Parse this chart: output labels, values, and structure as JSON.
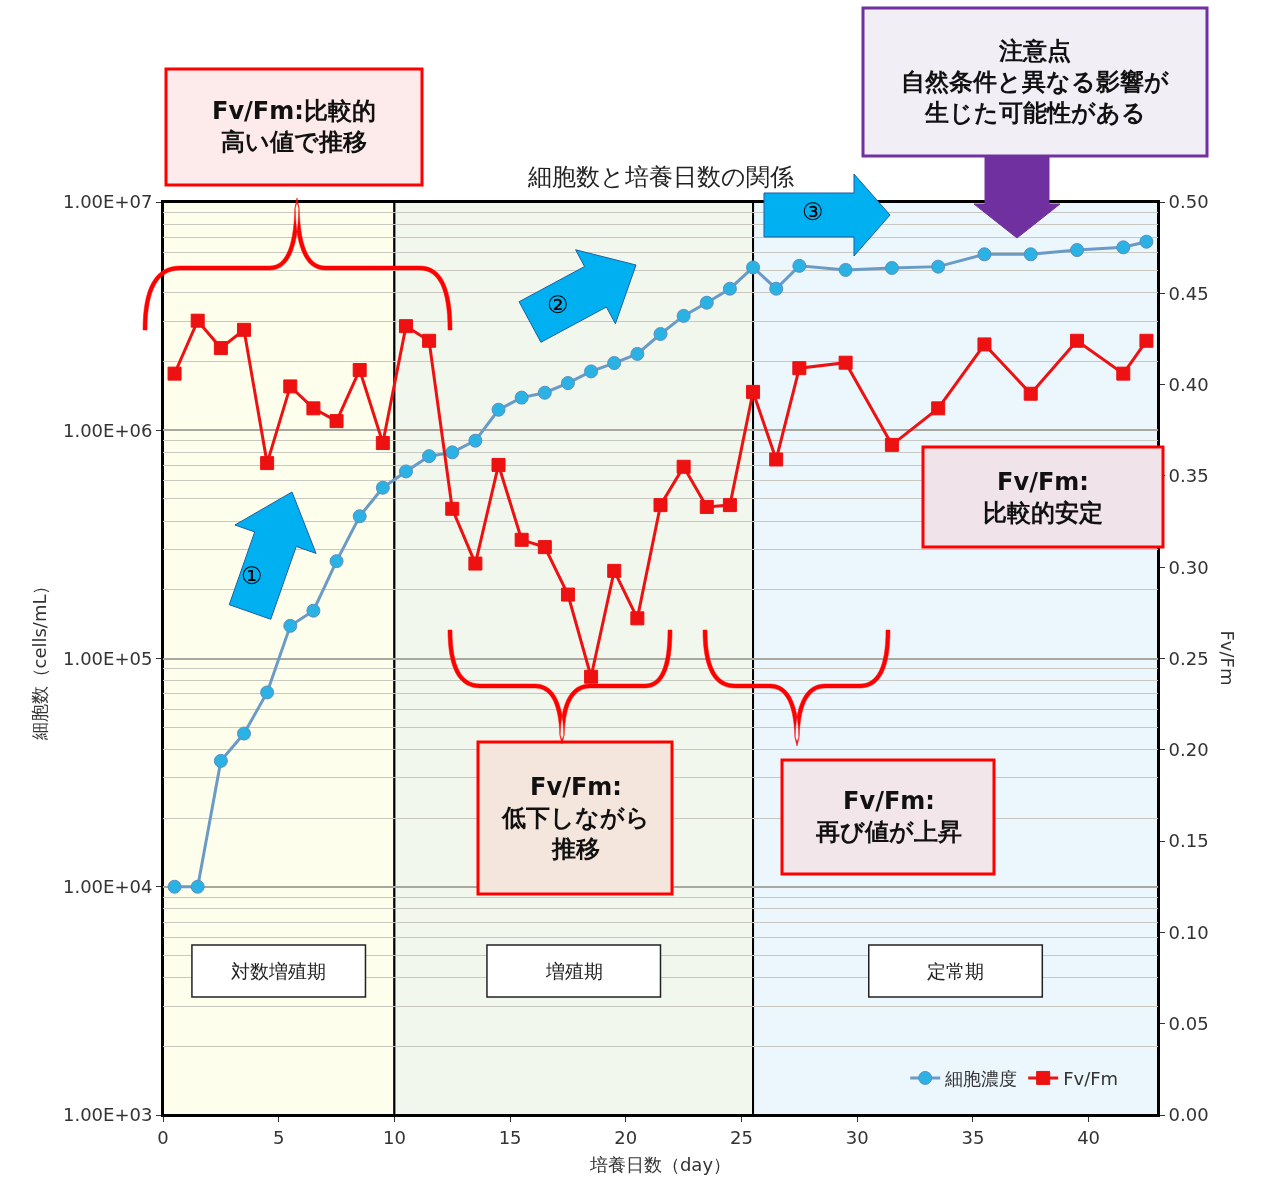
{
  "chart_data": {
    "type": "line",
    "title": "細胞数と培養日数の関係",
    "xlabel": "培養日数（day）",
    "ylabel": "細胞数（cells/mL）",
    "y2label": "Fv/Fm",
    "x": [
      0.5,
      1.5,
      2.5,
      3.5,
      4.5,
      5.5,
      6.5,
      7.5,
      8.5,
      9.5,
      10.5,
      11.5,
      12.5,
      13.5,
      14.5,
      15.5,
      16.5,
      17.5,
      18.5,
      19.5,
      20.5,
      21.5,
      22.5,
      23.5,
      24.5,
      25.5,
      26.5,
      27.5,
      29.5,
      31.5,
      33.5,
      35.5,
      37.5,
      39.5,
      41.5,
      42.5
    ],
    "series": [
      {
        "name": "細胞濃度",
        "color": "#29b2e3",
        "marker": "circle",
        "values": [
          10000,
          10000,
          35600,
          46900,
          71000,
          139000,
          162000,
          267000,
          420000,
          560000,
          660000,
          770000,
          800000,
          900000,
          1230000,
          1390000,
          1460000,
          1610000,
          1810000,
          1970000,
          2160000,
          2640000,
          3170000,
          3620000,
          4170000,
          5170000,
          4170000,
          5250000,
          5040000,
          5140000,
          5210000,
          5900000,
          5900000,
          6160000,
          6330000,
          6700000
        ]
      },
      {
        "name": "Fv/Fm",
        "color": "#ee1111",
        "marker": "square",
        "axis": "y2",
        "values": [
          0.406,
          0.435,
          0.42,
          0.43,
          0.357,
          0.399,
          0.387,
          0.38,
          0.408,
          0.368,
          0.432,
          0.424,
          0.332,
          0.302,
          0.356,
          0.315,
          0.311,
          0.285,
          0.24,
          0.298,
          0.272,
          0.334,
          0.355,
          0.333,
          0.334,
          0.396,
          0.359,
          0.409,
          0.412,
          0.367,
          0.387,
          0.422,
          0.395,
          0.424,
          0.406,
          0.424
        ]
      }
    ],
    "log": "y",
    "xlim": [
      0,
      43
    ],
    "xticks": [
      0,
      5,
      10,
      15,
      20,
      25,
      30,
      35,
      40
    ],
    "ylim": [
      1000,
      10000000
    ],
    "yticks": [
      {
        "value": 1000,
        "label": "1.00E+03"
      },
      {
        "value": 10000,
        "label": "1.00E+04"
      },
      {
        "value": 100000,
        "label": "1.00E+05"
      },
      {
        "value": 1000000,
        "label": "1.00E+06"
      },
      {
        "value": 10000000,
        "label": "1.00E+07"
      }
    ],
    "y2lim": [
      0,
      0.5
    ],
    "y2ticks": [
      {
        "value": 0,
        "label": "0.00"
      },
      {
        "value": 0.05,
        "label": "0.05"
      },
      {
        "value": 0.1,
        "label": "0.10"
      },
      {
        "value": 0.15,
        "label": "0.15"
      },
      {
        "value": 0.2,
        "label": "0.20"
      },
      {
        "value": 0.25,
        "label": "0.25"
      },
      {
        "value": 0.3,
        "label": "0.30"
      },
      {
        "value": 0.35,
        "label": "0.35"
      },
      {
        "value": 0.4,
        "label": "0.40"
      },
      {
        "value": 0.45,
        "label": "0.45"
      },
      {
        "value": 0.5,
        "label": "0.50"
      }
    ],
    "bands": [
      {
        "axis": "x",
        "from": 0,
        "to": 10,
        "label": "対数増殖期",
        "color": "#fefeec"
      },
      {
        "axis": "x",
        "from": 10,
        "to": 25.5,
        "label": "増殖期",
        "color": "#f1f7ec"
      },
      {
        "axis": "x",
        "from": 25.5,
        "to": 43,
        "label": "定常期",
        "color": "#ecf6fd"
      }
    ],
    "annotations": [
      "Fv/Fm:比較的高い値で推移",
      "注意点自然条件と異なる影響が生じた可能性がある",
      "Fv/Fm:低下しながら推移",
      "Fv/Fm:再び値が上昇",
      "Fv/Fm:比較的安定",
      "①",
      "②",
      "③"
    ],
    "grid": "y",
    "legend": "bottom right",
    "line_style": "solid"
  }
}
